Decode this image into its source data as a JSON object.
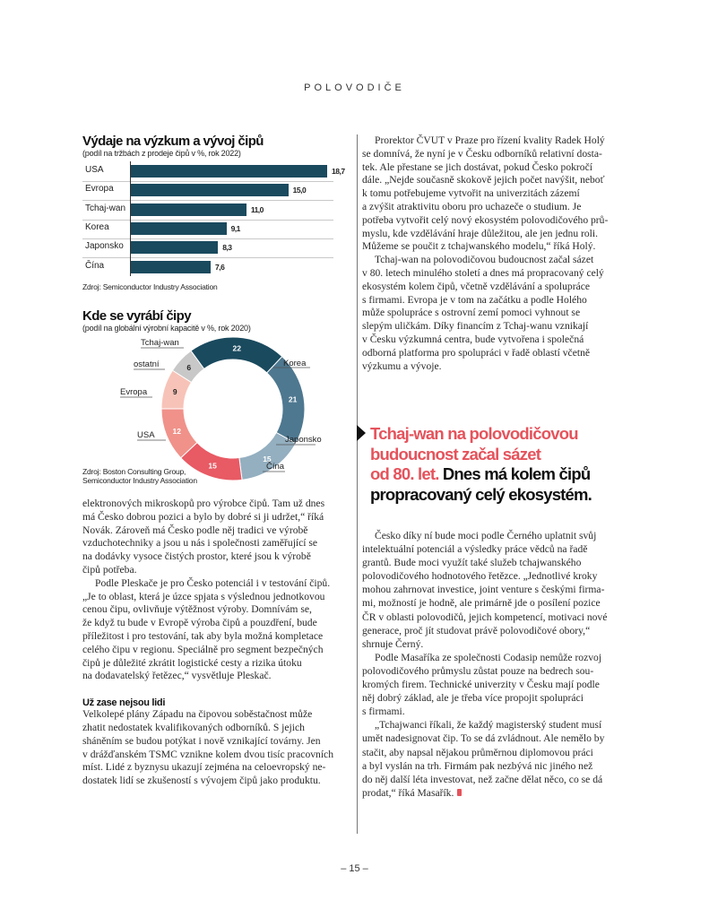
{
  "header": {
    "section": "POLOVODIČE"
  },
  "bar_chart": {
    "title": "Výdaje na výzkum a vývoj čipů",
    "subtitle": "(podíl na tržbách z prodeje čipů v %, rok 2022)",
    "source": "Zdroj: Semiconductor Industry Association",
    "bar_color": "#1a4a5e"
  },
  "donut_chart": {
    "title": "Kde se vyrábí čipy",
    "subtitle": "(podíl na globální výrobní kapacitě v %, rok 2020)",
    "source_lines": [
      "Zdroj: Boston Consulting Group,",
      "Semiconductor Industry Association"
    ]
  },
  "chart_data": [
    {
      "type": "bar",
      "title": "Výdaje na výzkum a vývoj čipů",
      "subtitle": "(podíl na tržbách z prodeje čipů v %, rok 2022)",
      "categories": [
        "USA",
        "Evropa",
        "Tchaj-wan",
        "Korea",
        "Japonsko",
        "Čína"
      ],
      "values": [
        18.7,
        15.0,
        11.0,
        9.1,
        8.3,
        7.6
      ],
      "labels": [
        "18,7",
        "15,0",
        "11,0",
        "9,1",
        "8,3",
        "7,6"
      ],
      "xlim": [
        0,
        19
      ],
      "orientation": "horizontal"
    },
    {
      "type": "pie",
      "title": "Kde se vyrábí čipy",
      "subtitle": "(podíl na globální výrobní kapacitě v %, rok 2020)",
      "categories": [
        "Tchaj-wan",
        "Korea",
        "Japonsko",
        "Čína",
        "USA",
        "Evropa",
        "ostatní"
      ],
      "values": [
        22,
        21,
        15,
        15,
        12,
        9,
        6
      ],
      "colors": [
        "#1a4a5e",
        "#4e7890",
        "#93afc0",
        "#e85a64",
        "#f0928a",
        "#f7c3b8",
        "#c8c8c8"
      ],
      "label_colors": [
        "#fff",
        "#fff",
        "#fff",
        "#fff",
        "#fff",
        "#222",
        "#222"
      ],
      "donut": true
    }
  ],
  "left_column": {
    "p1": [
      "elektronových mikroskopů pro výrobce čipů. Tam už dnes",
      "má Česko dobrou pozici a bylo by dobré si ji udržet,“ říká",
      "Novák. Zároveň má Česko podle něj tradici ve výrobě",
      "vzduchotechniky a jsou u nás i společnosti zaměřující se",
      "na dodávky vysoce čistých prostor, které jsou k výrobě",
      "čipů potřeba."
    ],
    "p2": [
      "Podle Pleskače je pro Česko potenciál i v testování čipů.",
      "„Je to oblast, která je úzce spjata s výslednou jednotkovou",
      "cenou čipu, ovlivňuje výtěžnost výroby. Domnívám se,",
      "že když tu bude v Evropě výroba čipů a pouzdření, bude",
      "příležitost i pro testování, tak aby byla možná kompletace",
      "celého čipu v regionu. Speciálně pro segment bezpečných",
      "čipů je důležité zkrátit logistické cesty a rizika útoku",
      "na dodavatelský řetězec,“ vysvětluje Pleskač."
    ],
    "subheading": "Už zase nejsou lidi",
    "p3": [
      "Velkolepé plány Západu na čipovou soběstačnost může",
      "zhatit nedostatek kvalifikovaných odborníků. S jejich",
      "sháněním se budou potýkat i nově vznikající továrny. Jen",
      "v drážďanském TSMC vznikne kolem dvou tisíc pracovních",
      "míst. Lidé z byznysu ukazují zejména na celoevropský ne-",
      "dostatek lidí se zkušeností s vývojem čipů jako produktu."
    ]
  },
  "right_column": {
    "p1": [
      "Prorektor ČVUT v Praze pro řízení kvality Radek Holý",
      "se domnívá, že nyní je v Česku odborníků relativní dosta-",
      "tek. Ale přestane se jich dostávat, pokud Česko pokročí",
      "dále. „Nejde současně skokově jejich počet navýšit, neboť",
      "k tomu potřebujeme vytvořit na univerzitách zázemí",
      "a zvýšit atraktivitu oboru pro uchazeče o studium. Je",
      "potřeba vytvořit celý nový ekosystém polovodičového prů-",
      "myslu, kde vzdělávání hraje důležitou, ale jen jednu roli.",
      "Můžeme se poučit z tchajwanského modelu,“ říká Holý."
    ],
    "p2": [
      "Tchaj-wan na polovodičovou budoucnost začal sázet",
      "v 80. letech minulého století a dnes má propracovaný celý",
      "ekosystém kolem čipů, včetně vzdělávání a spolupráce",
      "s firmami. Evropa je v tom na začátku a podle Holého",
      "může spolupráce s ostrovní zemí pomoci vyhnout se",
      "slepým uličkám. Díky financím z Tchaj-wanu vznikají",
      "v Česku výzkumná centra, bude vytvořena i společná",
      "odborná platforma pro spolupráci v řadě oblastí včetně",
      "výzkumu a vývoje."
    ],
    "pullquote": {
      "red_lines": [
        "Tchaj-wan na polovodičovou",
        "budoucnost začal sázet",
        "od 80. let."
      ],
      "black_lines": [
        "Dnes má kolem čipů",
        "propracovaný celý ekosystém."
      ],
      "accent_color": "#e5535c"
    },
    "p3": [
      "Česko díky ní bude moci podle Černého uplatnit svůj",
      "intelektuální potenciál a výsledky práce vědců na řadě",
      "grantů. Bude moci využít také služeb tchajwanského",
      "polovodičového hodnotového řetězce. „Jednotlivé kroky",
      "mohou zahrnovat investice, joint venture s českými firma-",
      "mi, možností je hodně, ale primárně jde o posílení pozice",
      "ČR v oblasti polovodičů, jejich kompetencí, motivaci nové",
      "generace, proč jít studovat právě polovodičové obory,“",
      "shrnuje Černý."
    ],
    "p4": [
      "Podle Masaříka ze společnosti Codasip nemůže rozvoj",
      "polovodičového průmyslu zůstat pouze na bedrech sou-",
      "kromých firem. Technické univerzity v Česku mají podle",
      "něj dobrý základ, ale je třeba více propojit spolupráci",
      "s firmami."
    ],
    "p5": [
      "„Tchajwanci říkali, že každý magisterský student musí",
      "umět nadesignovat čip. To se dá zvládnout. Ale nemělo by",
      "stačit, aby napsal nějakou průměrnou diplomovou práci",
      "a byl vyslán na trh. Firmám pak nezbývá nic jiného než",
      "do něj další léta investovat, než začne dělat něco, co se dá",
      "prodat,“ říká Masařík."
    ]
  },
  "footer": {
    "page_number": "– 15 –"
  }
}
